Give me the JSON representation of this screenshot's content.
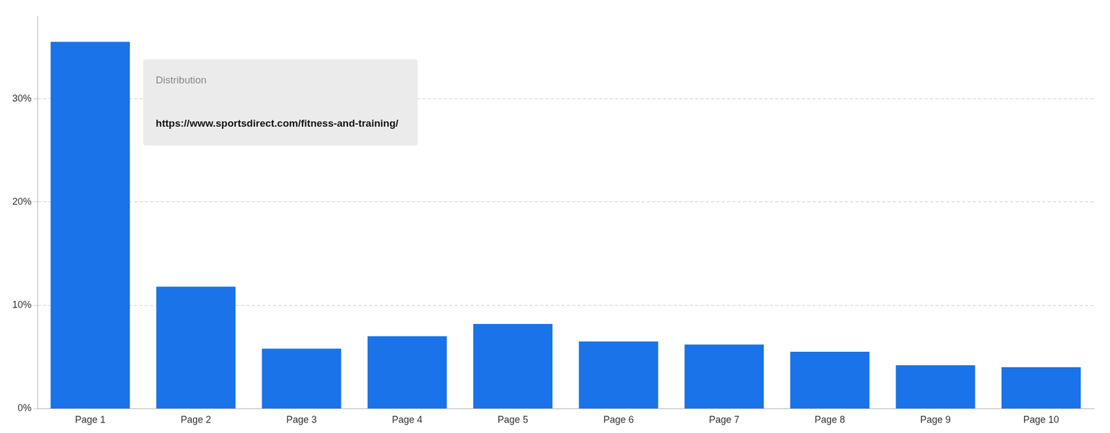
{
  "chart_data": {
    "type": "bar",
    "categories": [
      "Page 1",
      "Page 2",
      "Page 3",
      "Page 4",
      "Page 5",
      "Page 6",
      "Page 7",
      "Page 8",
      "Page 9",
      "Page 10"
    ],
    "values": [
      35.5,
      11.8,
      5.8,
      7.0,
      8.2,
      6.5,
      6.2,
      5.5,
      4.2,
      4.0
    ],
    "color": "#1a73e8",
    "ylim": [
      0,
      38
    ],
    "yticks": [
      {
        "value": 0,
        "label": "0%"
      },
      {
        "value": 10,
        "label": "10%"
      },
      {
        "value": 20,
        "label": "20%"
      },
      {
        "value": 30,
        "label": "30%"
      }
    ],
    "grid": true,
    "annotations": [
      "Distribution",
      "https://www.sportsdirect.com/fitness-and-training/"
    ]
  }
}
